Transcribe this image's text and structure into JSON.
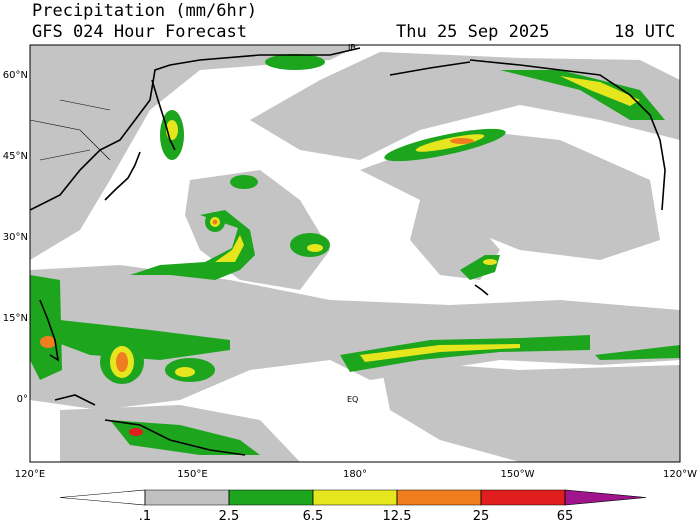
{
  "header": {
    "title": "Precipitation (mm/6hr)",
    "subtitle": "GFS 024 Hour Forecast",
    "date": "Thu 25 Sep 2025",
    "time": "18 UTC"
  },
  "map": {
    "lat_labels": [
      "60°N",
      "45°N",
      "30°N",
      "15°N",
      "0°"
    ],
    "lon_labels": [
      "120°E",
      "150°E",
      "180°",
      "150°W",
      "120°W"
    ],
    "annotations": [
      "EQ",
      "IB"
    ]
  },
  "legend": {
    "levels": [
      {
        "value": 0.1,
        "label": ".1"
      },
      2.5,
      6.5,
      12.5,
      25,
      65
    ],
    "colors": [
      "#ffffff",
      "#c0c0c0",
      "#1ea51e",
      "#e6e61e",
      "#f07d1e",
      "#e11e1e",
      "#a0148c"
    ]
  }
}
